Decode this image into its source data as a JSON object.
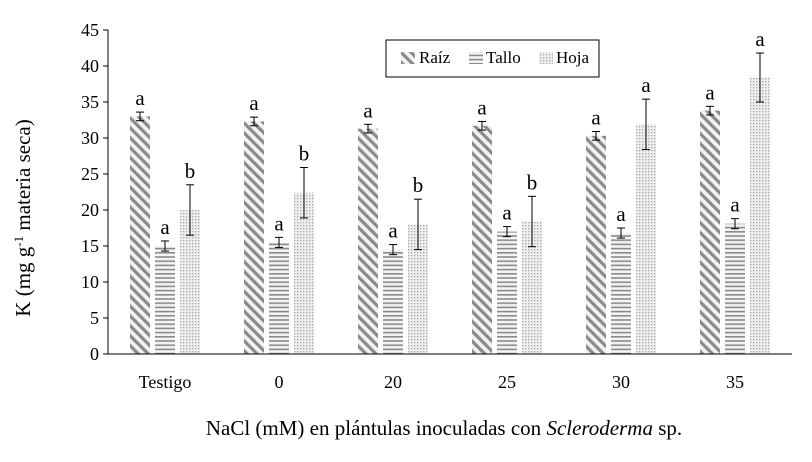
{
  "chart_data": {
    "type": "bar",
    "title": "",
    "ylabel": "K (mg g-1 materia seca)",
    "ylabel_base": "K (mg g",
    "ylabel_sup": "-1",
    "ylabel_rest": " materia seca)",
    "xlabel_prefix": "NaCl (mM) en plántulas inoculadas con ",
    "xlabel_italic": "Scleroderma",
    "xlabel_suffix": " sp.",
    "ylim": [
      0,
      45
    ],
    "yticks": [
      0,
      5,
      10,
      15,
      20,
      25,
      30,
      35,
      40,
      45
    ],
    "categories": [
      "Testigo",
      "0",
      "20",
      "25",
      "30",
      "35"
    ],
    "legend_position": "top-right",
    "series": [
      {
        "name": "Raíz",
        "pattern": "diagonal",
        "values": [
          33.0,
          32.3,
          31.3,
          31.7,
          30.3,
          33.8
        ],
        "errors": [
          0.6,
          0.6,
          0.6,
          0.6,
          0.6,
          0.6
        ],
        "letters": [
          "a",
          "a",
          "a",
          "a",
          "a",
          "a"
        ]
      },
      {
        "name": "Tallo",
        "pattern": "horizontal",
        "values": [
          15.0,
          15.5,
          14.5,
          17.0,
          16.8,
          18.1
        ],
        "errors": [
          0.7,
          0.7,
          0.7,
          0.7,
          0.7,
          0.7
        ],
        "letters": [
          "a",
          "a",
          "a",
          "a",
          "a",
          "a"
        ]
      },
      {
        "name": "Hoja",
        "pattern": "dots",
        "values": [
          20.0,
          22.4,
          18.0,
          18.4,
          31.9,
          38.4
        ],
        "errors": [
          3.5,
          3.5,
          3.5,
          3.5,
          3.5,
          3.4
        ],
        "letters": [
          "b",
          "b",
          "b",
          "b",
          "a",
          "a"
        ]
      }
    ]
  }
}
